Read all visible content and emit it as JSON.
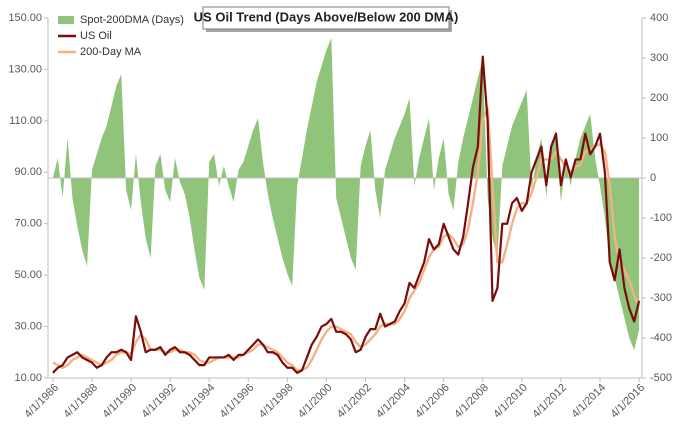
{
  "chart_data": {
    "type": "line",
    "title": "US Oil Trend (Days Above/Below 200 DMA)",
    "x": [
      1986.25,
      1986.5,
      1986.75,
      1987,
      1987.25,
      1987.5,
      1987.75,
      1988,
      1988.25,
      1988.5,
      1988.75,
      1989,
      1989.25,
      1989.5,
      1989.75,
      1990,
      1990.25,
      1990.5,
      1990.75,
      1991,
      1991.25,
      1991.5,
      1991.75,
      1992,
      1992.25,
      1992.5,
      1992.75,
      1993,
      1993.25,
      1993.5,
      1993.75,
      1994,
      1994.25,
      1994.5,
      1994.75,
      1995,
      1995.25,
      1995.5,
      1995.75,
      1996,
      1996.25,
      1996.5,
      1996.75,
      1997,
      1997.25,
      1997.5,
      1997.75,
      1998,
      1998.25,
      1998.5,
      1998.75,
      1999,
      1999.25,
      1999.5,
      1999.75,
      2000,
      2000.25,
      2000.5,
      2000.75,
      2001,
      2001.25,
      2001.5,
      2001.75,
      2002,
      2002.25,
      2002.5,
      2002.75,
      2003,
      2003.25,
      2003.5,
      2003.75,
      2004,
      2004.25,
      2004.5,
      2004.75,
      2005,
      2005.25,
      2005.5,
      2005.75,
      2006,
      2006.25,
      2006.5,
      2006.75,
      2007,
      2007.25,
      2007.5,
      2007.75,
      2008,
      2008.25,
      2008.5,
      2008.75,
      2009,
      2009.25,
      2009.5,
      2009.75,
      2010,
      2010.25,
      2010.5,
      2010.75,
      2011,
      2011.25,
      2011.5,
      2011.75,
      2012,
      2012.25,
      2012.5,
      2012.75,
      2013,
      2013.25,
      2013.5,
      2013.75,
      2014,
      2014.25,
      2014.5,
      2014.75,
      2015,
      2015.25,
      2015.5,
      2015.75,
      2016,
      2016.25
    ],
    "series": [
      {
        "name": "Spot-200DMA (Days)",
        "color": "#8fc47a",
        "axis": "y2",
        "kind": "area",
        "values": [
          0,
          50,
          -50,
          100,
          -50,
          -120,
          -180,
          -220,
          20,
          60,
          100,
          130,
          180,
          230,
          260,
          -30,
          -80,
          60,
          -60,
          -150,
          -200,
          30,
          60,
          -30,
          -60,
          50,
          -10,
          -40,
          -100,
          -180,
          -250,
          -280,
          40,
          60,
          -20,
          30,
          -20,
          -60,
          20,
          40,
          80,
          120,
          150,
          40,
          -40,
          -100,
          -150,
          -200,
          -240,
          -270,
          -20,
          50,
          120,
          180,
          240,
          280,
          320,
          350,
          -50,
          -100,
          -150,
          -200,
          -230,
          30,
          80,
          120,
          -30,
          -100,
          20,
          60,
          100,
          130,
          160,
          200,
          -20,
          50,
          100,
          150,
          -30,
          50,
          100,
          -40,
          -80,
          40,
          100,
          150,
          200,
          250,
          300,
          -50,
          -150,
          -200,
          30,
          80,
          130,
          160,
          190,
          220,
          -30,
          50,
          100,
          -50,
          80,
          120,
          -60,
          40,
          -20,
          50,
          100,
          130,
          160,
          50,
          -20,
          -100,
          -200,
          -250,
          -300,
          -350,
          -400,
          -430,
          -380
        ]
      },
      {
        "name": "US Oil",
        "color": "#7b0c0c",
        "axis": "y",
        "values": [
          12,
          14,
          15,
          18,
          19,
          20,
          18,
          17,
          16,
          14,
          15,
          18,
          20,
          20,
          21,
          20,
          17,
          34,
          28,
          20,
          21,
          21,
          22,
          19,
          21,
          22,
          20,
          20,
          19,
          17,
          15,
          15,
          18,
          18,
          18,
          18,
          19,
          17,
          19,
          19,
          21,
          23,
          25,
          23,
          20,
          20,
          19,
          16,
          14,
          14,
          12,
          13,
          18,
          23,
          26,
          30,
          31,
          33,
          28,
          28,
          27,
          25,
          20,
          21,
          26,
          29,
          29,
          35,
          30,
          31,
          32,
          36,
          39,
          47,
          45,
          50,
          55,
          64,
          60,
          62,
          70,
          65,
          60,
          58,
          65,
          78,
          92,
          100,
          135,
          110,
          40,
          45,
          70,
          70,
          78,
          80,
          75,
          78,
          90,
          95,
          100,
          85,
          100,
          105,
          85,
          95,
          88,
          95,
          95,
          105,
          97,
          100,
          105,
          90,
          55,
          48,
          60,
          45,
          37,
          32,
          40
        ]
      },
      {
        "name": "200-Day MA",
        "color": "#f4b183",
        "axis": "y",
        "values": [
          16,
          15,
          14,
          15,
          17,
          18,
          19,
          18,
          17,
          16,
          15,
          16,
          17,
          19,
          20,
          20,
          19,
          24,
          27,
          25,
          21,
          21,
          21,
          20,
          20,
          21,
          21,
          20,
          20,
          19,
          17,
          16,
          16,
          17,
          18,
          18,
          18,
          18,
          18,
          19,
          20,
          21,
          23,
          23,
          22,
          21,
          20,
          18,
          16,
          15,
          13,
          13,
          14,
          17,
          21,
          25,
          28,
          30,
          30,
          29,
          28,
          27,
          24,
          22,
          23,
          25,
          27,
          30,
          31,
          31,
          31,
          33,
          36,
          41,
          44,
          47,
          52,
          57,
          60,
          61,
          65,
          66,
          64,
          61,
          62,
          68,
          78,
          90,
          110,
          115,
          85,
          55,
          55,
          62,
          70,
          76,
          78,
          78,
          82,
          88,
          95,
          95,
          95,
          98,
          95,
          92,
          90,
          92,
          93,
          98,
          99,
          100,
          101,
          98,
          85,
          65,
          55,
          52,
          48,
          42,
          38
        ]
      }
    ],
    "xlim": [
      1986,
      2016.4
    ],
    "xticks": [
      {
        "value": 1986.25,
        "label": "4/1/1986"
      },
      {
        "value": 1988.25,
        "label": "4/1/1988"
      },
      {
        "value": 1990.25,
        "label": "4/1/1990"
      },
      {
        "value": 1992.25,
        "label": "4/1/1992"
      },
      {
        "value": 1994.25,
        "label": "4/1/1994"
      },
      {
        "value": 1996.25,
        "label": "4/1/1996"
      },
      {
        "value": 1998.25,
        "label": "4/1/1998"
      },
      {
        "value": 2000.25,
        "label": "4/1/2000"
      },
      {
        "value": 2002.25,
        "label": "4/1/2002"
      },
      {
        "value": 2004.25,
        "label": "4/1/2004"
      },
      {
        "value": 2006.25,
        "label": "4/1/2006"
      },
      {
        "value": 2008.25,
        "label": "4/1/2008"
      },
      {
        "value": 2010.25,
        "label": "4/1/2010"
      },
      {
        "value": 2012.25,
        "label": "4/1/2012"
      },
      {
        "value": 2014.25,
        "label": "4/1/2014"
      },
      {
        "value": 2016.25,
        "label": "4/1/2016"
      }
    ],
    "ylim": [
      10,
      150
    ],
    "yticks": [
      {
        "value": 10,
        "label": "10.00"
      },
      {
        "value": 30,
        "label": "30.00"
      },
      {
        "value": 50,
        "label": "50.00"
      },
      {
        "value": 70,
        "label": "70.00"
      },
      {
        "value": 90,
        "label": "90.00"
      },
      {
        "value": 110,
        "label": "110.00"
      },
      {
        "value": 130,
        "label": "130.00"
      },
      {
        "value": 150,
        "label": "150.00"
      }
    ],
    "y2lim": [
      -500,
      400
    ],
    "y2ticks": [
      -500,
      -400,
      -300,
      -200,
      -100,
      0,
      100,
      200,
      300,
      400
    ]
  }
}
